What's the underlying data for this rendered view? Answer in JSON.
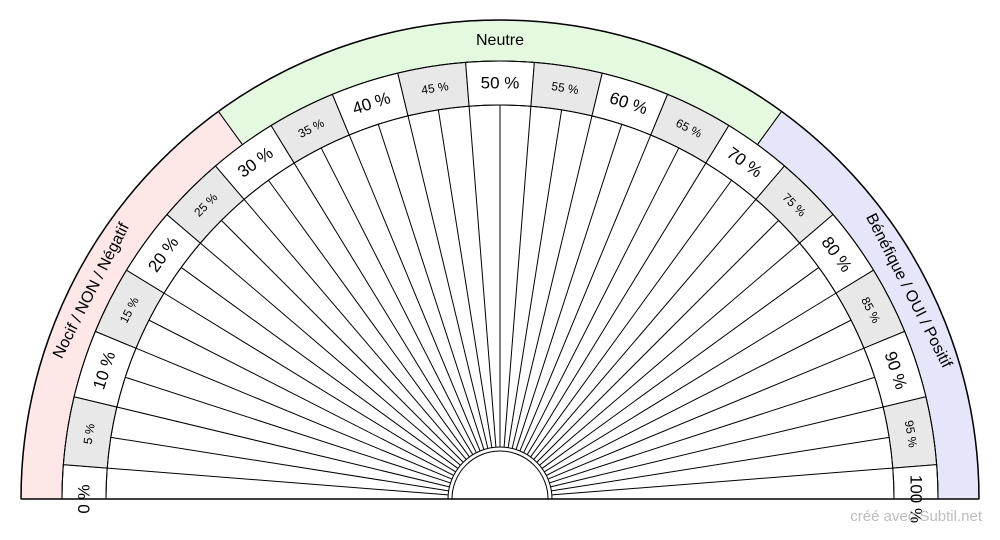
{
  "zones": [
    {
      "label": "Nocif / NON / Négatif",
      "color": "#fde7e7",
      "from": 0,
      "to": 30
    },
    {
      "label": "Neutre",
      "color": "#e4f9df",
      "from": 30,
      "to": 70
    },
    {
      "label": "Bénéfique / OUI / Positif",
      "color": "#e6e6fa",
      "from": 70,
      "to": 100
    }
  ],
  "scale": {
    "labels": [
      "0 %",
      "5 %",
      "10 %",
      "15 %",
      "20 %",
      "25 %",
      "30 %",
      "35 %",
      "40 %",
      "45 %",
      "50 %",
      "55 %",
      "60 %",
      "65 %",
      "70 %",
      "75 %",
      "80 %",
      "85 %",
      "90 %",
      "95 %",
      "100 %"
    ],
    "cell_fill_white": "#ffffff",
    "cell_fill_gray": "#e8e8e8"
  },
  "credit": "créé avec Subtil.net"
}
